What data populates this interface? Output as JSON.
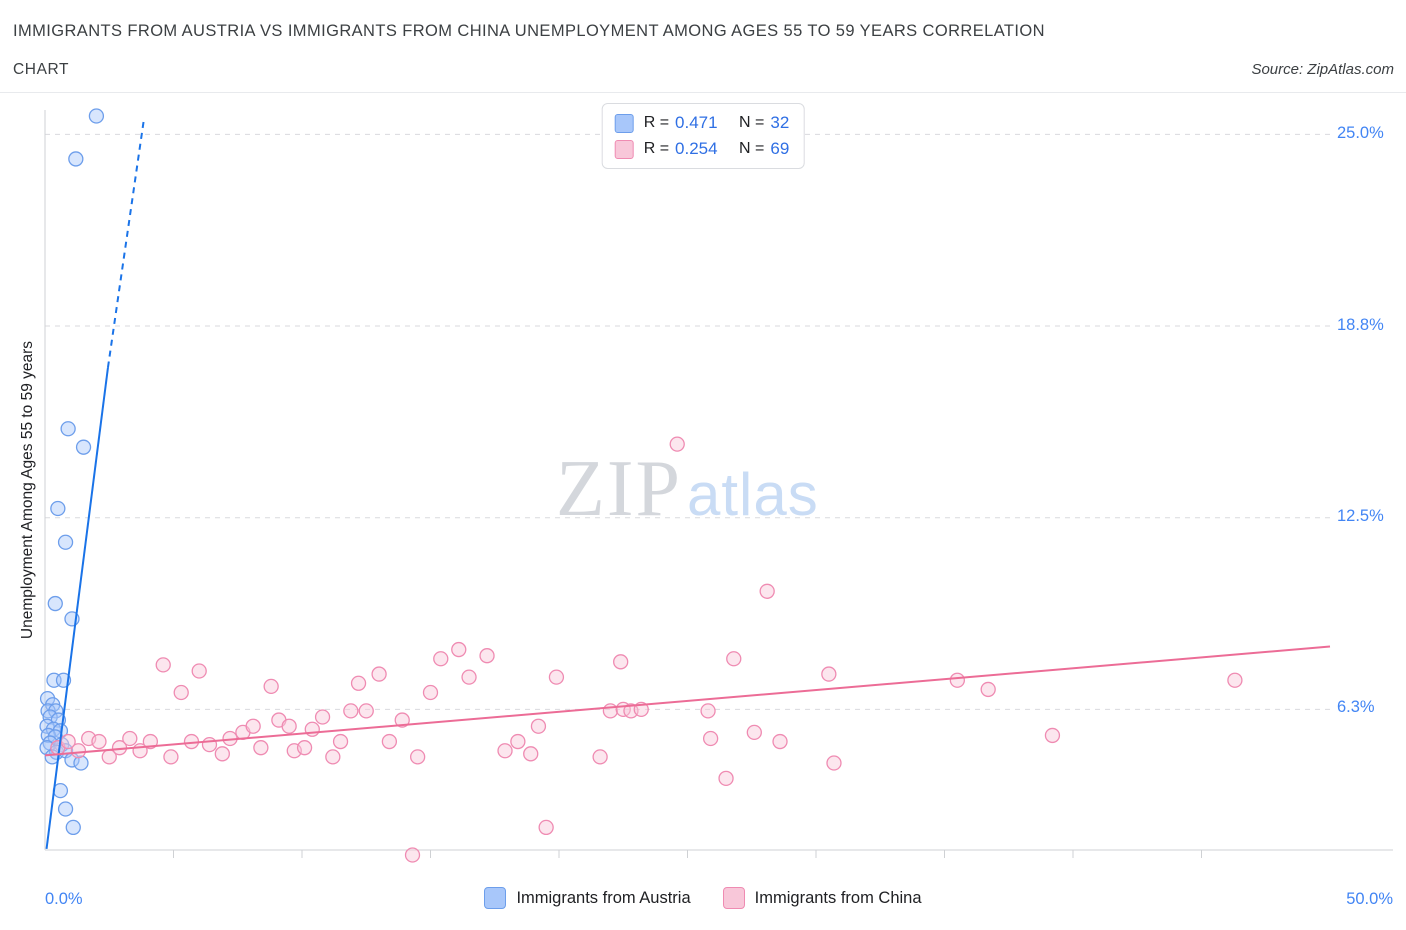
{
  "header": {
    "title": "IMMIGRANTS FROM AUSTRIA VS IMMIGRANTS FROM CHINA UNEMPLOYMENT AMONG AGES 55 TO 59 YEARS CORRELATION",
    "subtitle": "CHART",
    "source": "Source: ZipAtlas.com"
  },
  "watermark": {
    "part1": "ZIP",
    "part2": "atlas"
  },
  "axes": {
    "tick_color": "#4285f4",
    "grid_color": "#d9dade",
    "axis_color": "#cfd1d4"
  },
  "legend_box": {
    "value_color": "#2f6fe4",
    "rows": [
      {
        "r_label": "R =",
        "r_value": "0.471",
        "n_label": "N =",
        "n_value": "32"
      },
      {
        "r_label": "R =",
        "r_value": "0.254",
        "n_label": "N =",
        "n_value": "69"
      }
    ]
  },
  "bottom_legend": {
    "items": [
      {
        "label": "Immigrants from Austria"
      },
      {
        "label": "Immigrants from China"
      }
    ]
  },
  "chart_data": {
    "type": "scatter",
    "title": "Immigrants from Austria vs Immigrants from China Unemployment Among Ages 55 to 59 years Correlation",
    "xlabel": "",
    "ylabel": "Unemployment Among Ages 55 to 59 years",
    "xlim": [
      0,
      50
    ],
    "ylim": [
      0,
      26
    ],
    "grid": true,
    "legend_position": "top-center",
    "x_ticks": [
      {
        "value": 0,
        "label": "0.0%"
      },
      {
        "value": 50,
        "label": "50.0%"
      }
    ],
    "x_minor_tick_step": 5,
    "y_ticks": [
      {
        "value": 25.0,
        "label": "25.0%"
      },
      {
        "value": 18.75,
        "label": "18.8%"
      },
      {
        "value": 12.5,
        "label": "12.5%"
      },
      {
        "value": 6.25,
        "label": "6.3%"
      }
    ],
    "series": [
      {
        "name": "Immigrants from Austria",
        "R": 0.471,
        "N": 32,
        "point_fill": "#a8c7fa",
        "point_stroke": "#6d9eeb",
        "trend_color": "#1a73e8",
        "points": [
          [
            2.0,
            25.6
          ],
          [
            1.2,
            24.2
          ],
          [
            0.9,
            15.4
          ],
          [
            1.5,
            14.8
          ],
          [
            0.5,
            12.8
          ],
          [
            0.8,
            11.7
          ],
          [
            0.4,
            9.7
          ],
          [
            1.05,
            9.2
          ],
          [
            0.35,
            7.2
          ],
          [
            0.72,
            7.2
          ],
          [
            0.1,
            6.6
          ],
          [
            0.3,
            6.4
          ],
          [
            0.12,
            6.2
          ],
          [
            0.42,
            6.2
          ],
          [
            0.2,
            6.0
          ],
          [
            0.52,
            5.9
          ],
          [
            0.08,
            5.7
          ],
          [
            0.33,
            5.6
          ],
          [
            0.6,
            5.55
          ],
          [
            0.13,
            5.4
          ],
          [
            0.4,
            5.35
          ],
          [
            0.2,
            5.15
          ],
          [
            0.65,
            5.1
          ],
          [
            0.08,
            5.0
          ],
          [
            0.45,
            4.85
          ],
          [
            0.8,
            4.9
          ],
          [
            0.28,
            4.7
          ],
          [
            1.05,
            4.6
          ],
          [
            1.4,
            4.5
          ],
          [
            0.6,
            3.6
          ],
          [
            0.8,
            3.0
          ],
          [
            1.1,
            2.4
          ]
        ],
        "trend_segments": [
          {
            "x1": 0.06,
            "y1": 1.7,
            "x2": 2.45,
            "y2": 17.4,
            "style": "solid"
          },
          {
            "x1": 2.45,
            "y1": 17.4,
            "x2": 3.85,
            "y2": 25.5,
            "style": "dashed"
          }
        ]
      },
      {
        "name": "Immigrants from China",
        "R": 0.254,
        "N": 69,
        "point_fill": "#f8c7d9",
        "point_stroke": "#ef8bb2",
        "trend_color": "#ec6c96",
        "points": [
          [
            0.5,
            5.0
          ],
          [
            0.9,
            5.2
          ],
          [
            1.3,
            4.9
          ],
          [
            1.7,
            5.3
          ],
          [
            2.1,
            5.2
          ],
          [
            2.5,
            4.7
          ],
          [
            2.9,
            5.0
          ],
          [
            3.3,
            5.3
          ],
          [
            3.7,
            4.9
          ],
          [
            4.1,
            5.2
          ],
          [
            4.6,
            7.7
          ],
          [
            4.9,
            4.7
          ],
          [
            5.3,
            6.8
          ],
          [
            5.7,
            5.2
          ],
          [
            6.0,
            7.5
          ],
          [
            6.4,
            5.1
          ],
          [
            6.9,
            4.8
          ],
          [
            7.2,
            5.3
          ],
          [
            7.7,
            5.5
          ],
          [
            8.1,
            5.7
          ],
          [
            8.4,
            5.0
          ],
          [
            8.8,
            7.0
          ],
          [
            9.1,
            5.9
          ],
          [
            9.5,
            5.7
          ],
          [
            9.7,
            4.9
          ],
          [
            10.1,
            5.0
          ],
          [
            10.4,
            5.6
          ],
          [
            10.8,
            6.0
          ],
          [
            11.2,
            4.7
          ],
          [
            11.5,
            5.2
          ],
          [
            11.9,
            6.2
          ],
          [
            12.2,
            7.1
          ],
          [
            12.5,
            6.2
          ],
          [
            13.0,
            7.4
          ],
          [
            13.4,
            5.2
          ],
          [
            13.9,
            5.9
          ],
          [
            14.3,
            1.5
          ],
          [
            14.5,
            4.7
          ],
          [
            15.0,
            6.8
          ],
          [
            15.4,
            7.9
          ],
          [
            16.1,
            8.2
          ],
          [
            16.5,
            7.3
          ],
          [
            17.2,
            8.0
          ],
          [
            17.9,
            4.9
          ],
          [
            18.4,
            5.2
          ],
          [
            18.9,
            4.8
          ],
          [
            19.2,
            5.7
          ],
          [
            19.5,
            2.4
          ],
          [
            19.9,
            7.3
          ],
          [
            21.6,
            4.7
          ],
          [
            22.0,
            6.2
          ],
          [
            22.4,
            7.8
          ],
          [
            22.5,
            6.25
          ],
          [
            22.8,
            6.2
          ],
          [
            23.2,
            6.25
          ],
          [
            24.6,
            14.9
          ],
          [
            25.8,
            6.2
          ],
          [
            25.9,
            5.3
          ],
          [
            26.5,
            4.0
          ],
          [
            26.8,
            7.9
          ],
          [
            27.6,
            5.5
          ],
          [
            28.1,
            10.1
          ],
          [
            28.6,
            5.2
          ],
          [
            30.5,
            7.4
          ],
          [
            30.7,
            4.5
          ],
          [
            35.5,
            7.2
          ],
          [
            36.7,
            6.9
          ],
          [
            39.2,
            5.4
          ],
          [
            46.3,
            7.2
          ]
        ],
        "trend_segments": [
          {
            "x1": 0.0,
            "y1": 4.75,
            "x2": 50.0,
            "y2": 8.3,
            "style": "solid"
          }
        ]
      }
    ]
  }
}
